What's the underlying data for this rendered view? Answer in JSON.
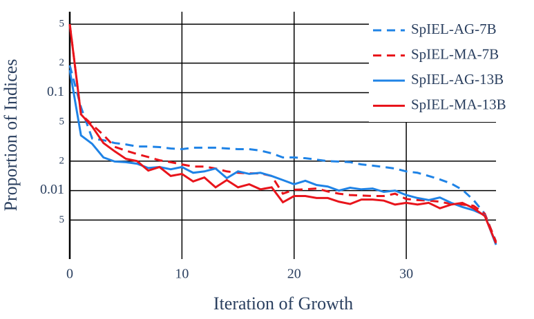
{
  "chart_data": {
    "type": "line",
    "x_label": "Iteration of Growth",
    "y_label": "Proportion of Indices",
    "x": [
      0,
      1,
      2,
      3,
      4,
      5,
      6,
      7,
      8,
      9,
      10,
      11,
      12,
      13,
      14,
      15,
      16,
      17,
      18,
      19,
      20,
      21,
      22,
      23,
      24,
      25,
      26,
      27,
      28,
      29,
      30,
      31,
      32,
      33,
      34,
      35,
      36,
      37,
      38
    ],
    "series": [
      {
        "name": "SpIEL-AG-7B",
        "color": "#1f83e6",
        "dash": true,
        "values": [
          0.19,
          0.071,
          0.034,
          0.0327,
          0.0306,
          0.0296,
          0.0282,
          0.0282,
          0.0278,
          0.0269,
          0.0265,
          0.0274,
          0.0274,
          0.0274,
          0.0269,
          0.0265,
          0.0265,
          0.0256,
          0.024,
          0.0218,
          0.0218,
          0.0214,
          0.0207,
          0.02,
          0.0198,
          0.0195,
          0.0185,
          0.018,
          0.0174,
          0.0168,
          0.0157,
          0.0152,
          0.0141,
          0.013,
          0.0118,
          0.0102,
          0.008,
          0.0058,
          0.003
        ]
      },
      {
        "name": "SpIEL-MA-7B",
        "color": "#e8141b",
        "dash": true,
        "values": [
          0.5,
          0.06,
          0.047,
          0.037,
          0.028,
          0.0256,
          0.0236,
          0.022,
          0.0204,
          0.0195,
          0.0185,
          0.0176,
          0.0176,
          0.0168,
          0.0157,
          0.0152,
          0.015,
          0.015,
          0.0141,
          0.0093,
          0.0102,
          0.0103,
          0.0105,
          0.0098,
          0.0093,
          0.009,
          0.0089,
          0.0088,
          0.0088,
          0.0093,
          0.0082,
          0.008,
          0.0079,
          0.0077,
          0.0073,
          0.0072,
          0.007,
          0.0058,
          0.003
        ]
      },
      {
        "name": "SpIEL-AG-13B",
        "color": "#1f83e6",
        "dash": false,
        "values": [
          0.17,
          0.0366,
          0.03,
          0.0218,
          0.0198,
          0.0195,
          0.0188,
          0.017,
          0.0174,
          0.0165,
          0.0174,
          0.0152,
          0.0157,
          0.0168,
          0.0134,
          0.0157,
          0.0148,
          0.0152,
          0.0141,
          0.0128,
          0.0116,
          0.0126,
          0.0114,
          0.011,
          0.01,
          0.0107,
          0.0103,
          0.0105,
          0.0097,
          0.01,
          0.009,
          0.0084,
          0.008,
          0.0085,
          0.0075,
          0.0068,
          0.0063,
          0.0056,
          0.0028
        ]
      },
      {
        "name": "SpIEL-MA-13B",
        "color": "#e8141b",
        "dash": false,
        "values": [
          0.5,
          0.06,
          0.045,
          0.0306,
          0.0252,
          0.0211,
          0.02,
          0.016,
          0.0174,
          0.0141,
          0.0148,
          0.0124,
          0.0136,
          0.0108,
          0.0128,
          0.0108,
          0.0116,
          0.0103,
          0.0108,
          0.0076,
          0.0088,
          0.0088,
          0.0084,
          0.0084,
          0.0077,
          0.0073,
          0.0081,
          0.0081,
          0.0079,
          0.0072,
          0.0075,
          0.0072,
          0.0075,
          0.0066,
          0.0072,
          0.0075,
          0.0066,
          0.0055,
          0.0029
        ]
      }
    ],
    "xlim": [
      0,
      38
    ],
    "xticks": [
      0,
      10,
      20,
      30
    ],
    "ylim": [
      0.002,
      0.67
    ],
    "yticks": [
      {
        "value": 0.005,
        "label": "5"
      },
      0.01,
      {
        "value": 0.02,
        "label": "2"
      },
      {
        "value": 0.05,
        "label": "5"
      },
      0.1,
      {
        "value": 0.2,
        "label": "2"
      },
      {
        "value": 0.5,
        "label": "5"
      }
    ],
    "y_log": true,
    "grid": true,
    "legend_loc": "upper right"
  }
}
